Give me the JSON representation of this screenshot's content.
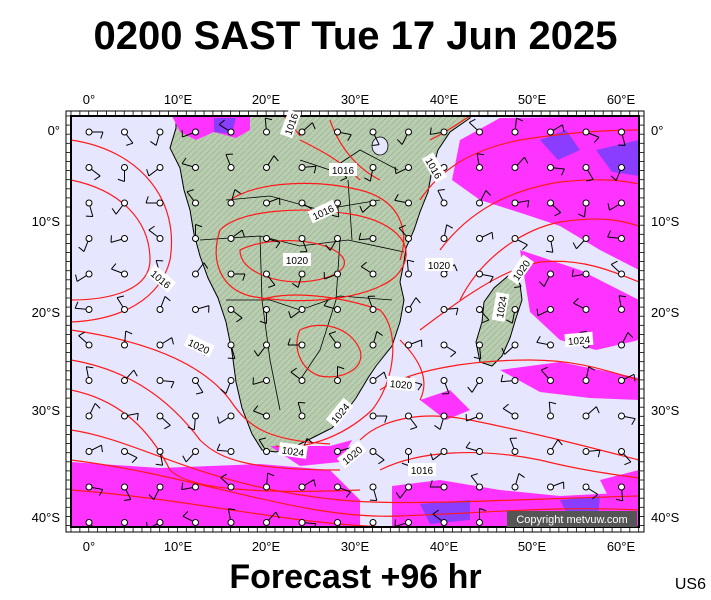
{
  "title": "0200 SAST Tue 17 Jun 2025",
  "footer": "Forecast +96 hr",
  "code": "US6",
  "copyright": "Copyright metvuw.com",
  "lon_labels": [
    "0°",
    "10°E",
    "20°E",
    "30°E",
    "40°E",
    "50°E",
    "60°E"
  ],
  "lat_labels": [
    "0°",
    "10°S",
    "20°S",
    "30°S",
    "40°S"
  ],
  "isobar_labels": [
    "1016",
    "1016",
    "1016",
    "1016",
    "1020",
    "1020",
    "1016",
    "1020",
    "1024",
    "1020",
    "1024",
    "1020",
    "1016",
    "1024"
  ],
  "colors": {
    "ocean": "#e6e6ff",
    "land": "#bcd0b0",
    "isobar": "#ff1a1a",
    "rain_light": "#ff33ff",
    "rain_heavy": "#8a3dff",
    "frame": "#000000"
  },
  "icons": [
    "wind-barb-station-icon"
  ]
}
